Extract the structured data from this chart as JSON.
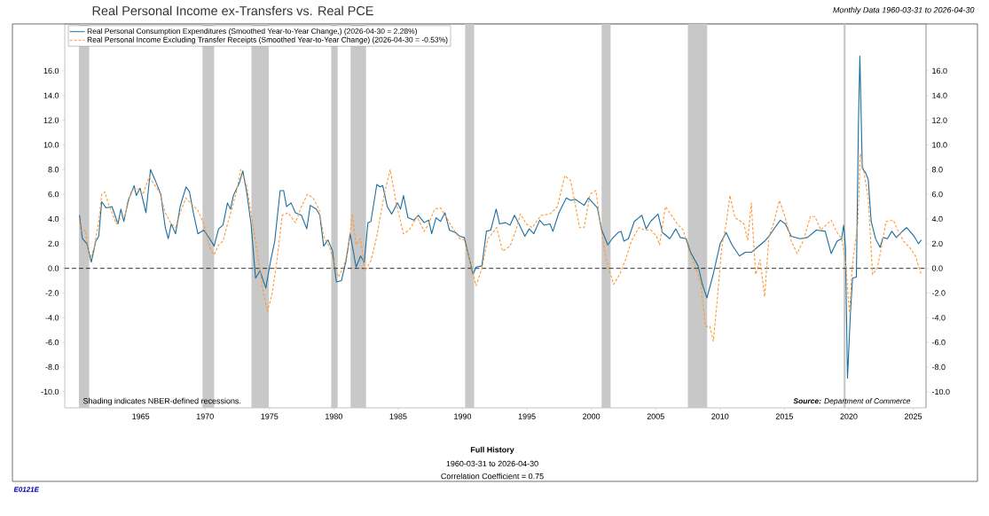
{
  "chart_data": {
    "type": "line",
    "title": "Real Personal Income ex-Transfers vs. Real PCE",
    "subtitle": "Monthly Data 1960-03-31 to 2026-04-30",
    "annotations": [
      "Shading indicates NBER-defined recessions.",
      "**Source:** Department of Commerce",
      "**Full History**",
      "1960-03-31 to 2026-04-30",
      "Correlation Coefficient = 0.75",
      "E0121E"
    ],
    "xlim": [
      1959.1,
      2026.0
    ],
    "xticks": [
      1965,
      1970,
      1975,
      1980,
      1985,
      1990,
      1995,
      2000,
      2005,
      2010,
      2015,
      2020,
      2025
    ],
    "ylim": [
      -11.3,
      19.8
    ],
    "yticks": [
      {
        "value": -10,
        "label": "-10.0"
      },
      {
        "value": -8,
        "label": "-8.0"
      },
      {
        "value": -6,
        "label": "-6.0"
      },
      {
        "value": -4,
        "label": "-4.0"
      },
      {
        "value": -2,
        "label": "-2.0"
      },
      {
        "value": 0,
        "label": "0.0"
      },
      {
        "value": 2,
        "label": "2.0"
      },
      {
        "value": 4,
        "label": "4.0"
      },
      {
        "value": 6,
        "label": "6.0"
      },
      {
        "value": 8,
        "label": "8.0"
      },
      {
        "value": 10,
        "label": "10.0"
      },
      {
        "value": 12,
        "label": "12.0"
      },
      {
        "value": 14,
        "label": "14.0"
      },
      {
        "value": 16,
        "label": "16.0"
      }
    ],
    "y2lim": [
      -11.3,
      19.8
    ],
    "y2ticks": [
      {
        "value": -10,
        "label": "-10.0"
      },
      {
        "value": -8,
        "label": "-8.0"
      },
      {
        "value": -6,
        "label": "-6.0"
      },
      {
        "value": -4,
        "label": "-4.0"
      },
      {
        "value": -2,
        "label": "-2.0"
      },
      {
        "value": 0,
        "label": "0.0"
      },
      {
        "value": 2,
        "label": "2.0"
      },
      {
        "value": 4,
        "label": "4.0"
      },
      {
        "value": 6,
        "label": "6.0"
      },
      {
        "value": 8,
        "label": "8.0"
      },
      {
        "value": 10,
        "label": "10.0"
      },
      {
        "value": 12,
        "label": "12.0"
      },
      {
        "value": 14,
        "label": "14.0"
      },
      {
        "value": 16,
        "label": "16.0"
      }
    ],
    "grid": false,
    "legend": "top left",
    "marker": "none",
    "ref_lines": [
      {
        "axis": "y",
        "value": 0,
        "color": "#000000",
        "line_style": "dashed"
      }
    ],
    "bands": [
      {
        "axis": "x",
        "from": 1960.2,
        "to": 1961.0,
        "color": "#c8c8c8"
      },
      {
        "axis": "x",
        "from": 1969.8,
        "to": 1970.7,
        "color": "#c8c8c8"
      },
      {
        "axis": "x",
        "from": 1973.6,
        "to": 1974.95,
        "color": "#c8c8c8"
      },
      {
        "axis": "x",
        "from": 1979.8,
        "to": 1980.3,
        "color": "#c8c8c8"
      },
      {
        "axis": "x",
        "from": 1981.3,
        "to": 1982.5,
        "color": "#c8c8c8"
      },
      {
        "axis": "x",
        "from": 1990.2,
        "to": 1990.9,
        "color": "#c8c8c8"
      },
      {
        "axis": "x",
        "from": 2000.8,
        "to": 2001.5,
        "color": "#c8c8c8"
      },
      {
        "axis": "x",
        "from": 2007.5,
        "to": 2009.0,
        "color": "#c8c8c8"
      },
      {
        "axis": "x",
        "from": 2019.6,
        "to": 2019.75,
        "color": "#c8c8c8"
      }
    ],
    "series": [
      {
        "name": "Real Personal Consumption Expenditures (Smoothed Year-to-Year Change,) (2026-04-30 = 2.28%)",
        "color": "#1a6fa0",
        "line_style": "solid",
        "x": [
          1960.25,
          1960.36,
          1960.47,
          1960.82,
          1961.16,
          1961.51,
          1961.74,
          1961.97,
          1962.31,
          1962.77,
          1963.23,
          1963.46,
          1963.69,
          1964.03,
          1964.49,
          1964.66,
          1964.95,
          1965.41,
          1965.76,
          1966.1,
          1966.56,
          1966.91,
          1967.14,
          1967.37,
          1967.71,
          1968.06,
          1968.52,
          1968.79,
          1969.09,
          1969.44,
          1969.9,
          1970.36,
          1970.7,
          1971.05,
          1971.39,
          1971.74,
          1971.97,
          1972.2,
          1972.66,
          1972.93,
          1973.23,
          1973.57,
          1973.92,
          1974.26,
          1974.72,
          1975.07,
          1975.41,
          1975.83,
          1976.1,
          1976.33,
          1976.68,
          1977.02,
          1977.48,
          1977.9,
          1978.17,
          1978.63,
          1978.91,
          1979.21,
          1979.55,
          1979.9,
          1980.2,
          1980.59,
          1980.93,
          1981.27,
          1981.73,
          1982.08,
          1982.36,
          1982.65,
          1982.88,
          1983.34,
          1983.57,
          1983.8,
          1984.15,
          1984.49,
          1984.95,
          1985.18,
          1985.41,
          1985.76,
          1986.22,
          1986.56,
          1987.02,
          1987.37,
          1987.6,
          1987.94,
          1988.29,
          1988.63,
          1988.98,
          1989.44,
          1989.78,
          1990.13,
          1990.59,
          1990.81,
          1991.05,
          1991.5,
          1991.85,
          1992.19,
          1992.61,
          1992.88,
          1993.34,
          1993.69,
          1994.03,
          1994.38,
          1994.84,
          1995.18,
          1995.53,
          1995.99,
          1996.33,
          1996.79,
          1997.02,
          1997.48,
          1998.06,
          1998.4,
          1998.75,
          1999.44,
          1999.78,
          2000.13,
          2000.47,
          2000.81,
          2001.28,
          2001.62,
          2002.08,
          2002.31,
          2002.54,
          2002.88,
          2003.34,
          2003.69,
          2003.92,
          2004.26,
          2004.61,
          2005.18,
          2005.53,
          2006.1,
          2006.56,
          2006.91,
          2007.37,
          2007.71,
          2008.29,
          2008.63,
          2008.98,
          2009.44,
          2010.01,
          2010.47,
          2010.93,
          2011.51,
          2011.97,
          2012.43,
          2012.89,
          2013.46,
          2013.8,
          2014.26,
          2014.68,
          2015.07,
          2015.53,
          2016.22,
          2016.79,
          2017.48,
          2018.17,
          2018.63,
          2019.09,
          2019.44,
          2019.6,
          2019.74,
          2019.9,
          2020.13,
          2020.29,
          2020.59,
          2020.75,
          2020.86,
          2021.05,
          2021.28,
          2021.51,
          2021.74,
          2022.08,
          2022.43,
          2022.66,
          2023.0,
          2023.34,
          2023.69,
          2024.26,
          2024.49,
          2025.07,
          2025.41,
          2025.64
        ],
        "values": [
          4.3,
          3.3,
          2.4,
          2.0,
          0.5,
          2.2,
          2.6,
          5.4,
          4.9,
          5.0,
          3.6,
          4.8,
          3.8,
          5.5,
          6.7,
          5.9,
          6.5,
          4.5,
          8.0,
          7.2,
          6.0,
          3.3,
          2.4,
          3.6,
          2.8,
          5.0,
          6.6,
          6.2,
          4.5,
          2.8,
          3.1,
          2.4,
          1.8,
          3.2,
          3.5,
          5.3,
          4.8,
          5.9,
          6.9,
          7.9,
          6.2,
          3.6,
          -0.8,
          -0.2,
          -1.6,
          0.5,
          2.2,
          6.3,
          6.3,
          5.0,
          5.3,
          4.5,
          4.3,
          3.2,
          5.1,
          4.8,
          4.3,
          1.8,
          2.3,
          1.4,
          -1.1,
          -1.0,
          0.5,
          2.8,
          0.1,
          1.0,
          0.5,
          3.7,
          3.8,
          6.8,
          6.6,
          6.7,
          5.0,
          4.4,
          5.3,
          4.8,
          5.9,
          4.1,
          3.9,
          4.3,
          3.7,
          3.9,
          2.8,
          4.1,
          3.8,
          4.5,
          3.1,
          2.9,
          2.6,
          2.5,
          0.5,
          -0.5,
          0.1,
          0.2,
          3.0,
          3.1,
          4.8,
          3.6,
          3.7,
          3.5,
          4.3,
          3.6,
          2.6,
          3.2,
          2.8,
          3.9,
          3.5,
          3.6,
          3.0,
          4.5,
          5.7,
          5.5,
          5.6,
          5.1,
          5.7,
          5.3,
          4.9,
          3.1,
          1.9,
          2.4,
          2.9,
          3.0,
          2.2,
          2.4,
          3.8,
          4.1,
          4.3,
          3.2,
          3.8,
          4.4,
          2.9,
          2.4,
          3.2,
          2.5,
          2.4,
          1.3,
          0.2,
          -1.3,
          -2.4,
          -0.6,
          2.0,
          2.9,
          1.9,
          1.0,
          1.3,
          1.3,
          1.7,
          2.2,
          2.6,
          3.3,
          3.9,
          3.6,
          2.6,
          2.4,
          2.5,
          3.1,
          3.0,
          1.2,
          2.2,
          2.4,
          3.5,
          1.7,
          -8.9,
          -3.6,
          -0.8,
          -0.7,
          11.7,
          17.2,
          8.1,
          7.8,
          7.2,
          3.8,
          2.4,
          1.7,
          2.5,
          2.4,
          3.0,
          2.5,
          3.1,
          3.3,
          2.6,
          2.0,
          2.3
        ]
      },
      {
        "name": "Real Personal Income Excluding Transfer Receipts (Smoothed Year-to-Year Change) (2026-04-30 = -0.53%)",
        "color": "#ff9933",
        "line_style": "dashed",
        "x": [
          1960.25,
          1960.36,
          1960.7,
          1961.05,
          1961.39,
          1961.74,
          1961.97,
          1962.2,
          1962.54,
          1963.11,
          1963.46,
          1963.8,
          1964.26,
          1964.72,
          1965.18,
          1965.64,
          1965.99,
          1966.45,
          1966.91,
          1967.37,
          1967.71,
          1968.06,
          1968.52,
          1968.86,
          1969.44,
          1969.9,
          1970.36,
          1970.7,
          1971.05,
          1971.39,
          1971.74,
          1972.08,
          1972.43,
          1972.77,
          1973.23,
          1973.57,
          1974.03,
          1974.49,
          1974.84,
          1975.18,
          1975.53,
          1975.99,
          1976.45,
          1977.02,
          1977.48,
          1977.94,
          1978.39,
          1978.85,
          1979.21,
          1979.67,
          1980.13,
          1980.36,
          1980.7,
          1981.05,
          1981.44,
          1981.73,
          1982.08,
          1982.42,
          1982.88,
          1983.34,
          1983.92,
          1984.38,
          1984.84,
          1985.41,
          1985.87,
          1986.45,
          1987.02,
          1987.37,
          1987.83,
          1988.29,
          1988.75,
          1989.21,
          1989.78,
          1990.13,
          1990.59,
          1991.05,
          1991.5,
          1991.97,
          1992.65,
          1993.11,
          1993.69,
          1994.15,
          1994.49,
          1994.95,
          1995.41,
          1996.1,
          1996.79,
          1997.37,
          1997.94,
          1998.4,
          1999.09,
          1999.44,
          1999.9,
          2000.36,
          2000.7,
          2001.16,
          2001.74,
          2002.2,
          2002.66,
          2003.11,
          2003.69,
          2004.15,
          2004.61,
          2005.07,
          2005.3,
          2005.76,
          2006.22,
          2006.68,
          2007.14,
          2007.6,
          2008.06,
          2008.52,
          2008.86,
          2009.21,
          2009.48,
          2009.78,
          2010.13,
          2010.47,
          2010.77,
          2011.16,
          2011.62,
          2011.85,
          2012.15,
          2012.43,
          2012.54,
          2012.77,
          2013.11,
          2013.46,
          2013.8,
          2014.15,
          2014.61,
          2015.07,
          2015.53,
          2015.99,
          2016.45,
          2017.02,
          2017.37,
          2017.83,
          2018.63,
          2019.09,
          2019.44,
          2019.74,
          2019.97,
          2020.06,
          2020.24,
          2020.47,
          2020.7,
          2020.89,
          2021.16,
          2021.51,
          2021.85,
          2022.2,
          2022.54,
          2022.89,
          2023.46,
          2023.8,
          2024.26,
          2024.72,
          2025.18,
          2025.53,
          2025.64
        ],
        "values": [
          3.9,
          3.0,
          3.1,
          0.7,
          1.7,
          3.8,
          6.0,
          6.2,
          5.1,
          3.6,
          4.1,
          4.4,
          6.2,
          6.5,
          6.0,
          7.4,
          6.9,
          6.2,
          4.5,
          3.6,
          3.3,
          4.5,
          5.7,
          5.3,
          4.7,
          3.6,
          1.7,
          1.1,
          1.9,
          2.2,
          3.6,
          4.8,
          6.2,
          8.0,
          6.7,
          4.5,
          1.4,
          -1.7,
          -3.5,
          -2.2,
          0.2,
          4.3,
          4.5,
          3.7,
          5.0,
          6.0,
          5.7,
          4.8,
          2.6,
          1.7,
          0.0,
          -0.7,
          0.0,
          1.1,
          4.4,
          1.9,
          2.4,
          -0.2,
          0.6,
          2.6,
          6.0,
          8.0,
          5.3,
          2.8,
          3.1,
          4.2,
          3.0,
          3.6,
          4.8,
          4.9,
          4.1,
          3.3,
          2.4,
          2.3,
          0.5,
          -1.4,
          0.0,
          2.4,
          3.3,
          1.4,
          1.8,
          3.1,
          4.4,
          3.6,
          3.3,
          4.3,
          4.4,
          5.0,
          7.5,
          7.1,
          3.3,
          3.3,
          6.0,
          6.3,
          3.6,
          0.7,
          -1.3,
          -0.5,
          0.7,
          2.2,
          3.3,
          3.1,
          3.1,
          2.6,
          1.9,
          5.0,
          4.3,
          3.6,
          3.1,
          1.4,
          0.2,
          -1.3,
          -4.7,
          -4.7,
          -5.9,
          -2.6,
          1.7,
          3.6,
          5.9,
          4.1,
          3.8,
          3.6,
          2.3,
          5.3,
          3.3,
          -0.5,
          0.7,
          -2.3,
          2.6,
          3.6,
          5.5,
          4.1,
          2.2,
          1.2,
          2.2,
          4.2,
          4.2,
          3.1,
          3.9,
          2.9,
          2.4,
          0.7,
          -2.6,
          -3.6,
          -0.2,
          1.9,
          3.6,
          9.3,
          7.9,
          5.7,
          -0.5,
          0.0,
          1.7,
          3.8,
          3.9,
          3.1,
          2.2,
          1.7,
          1.0,
          -0.2,
          -0.5
        ]
      }
    ]
  }
}
